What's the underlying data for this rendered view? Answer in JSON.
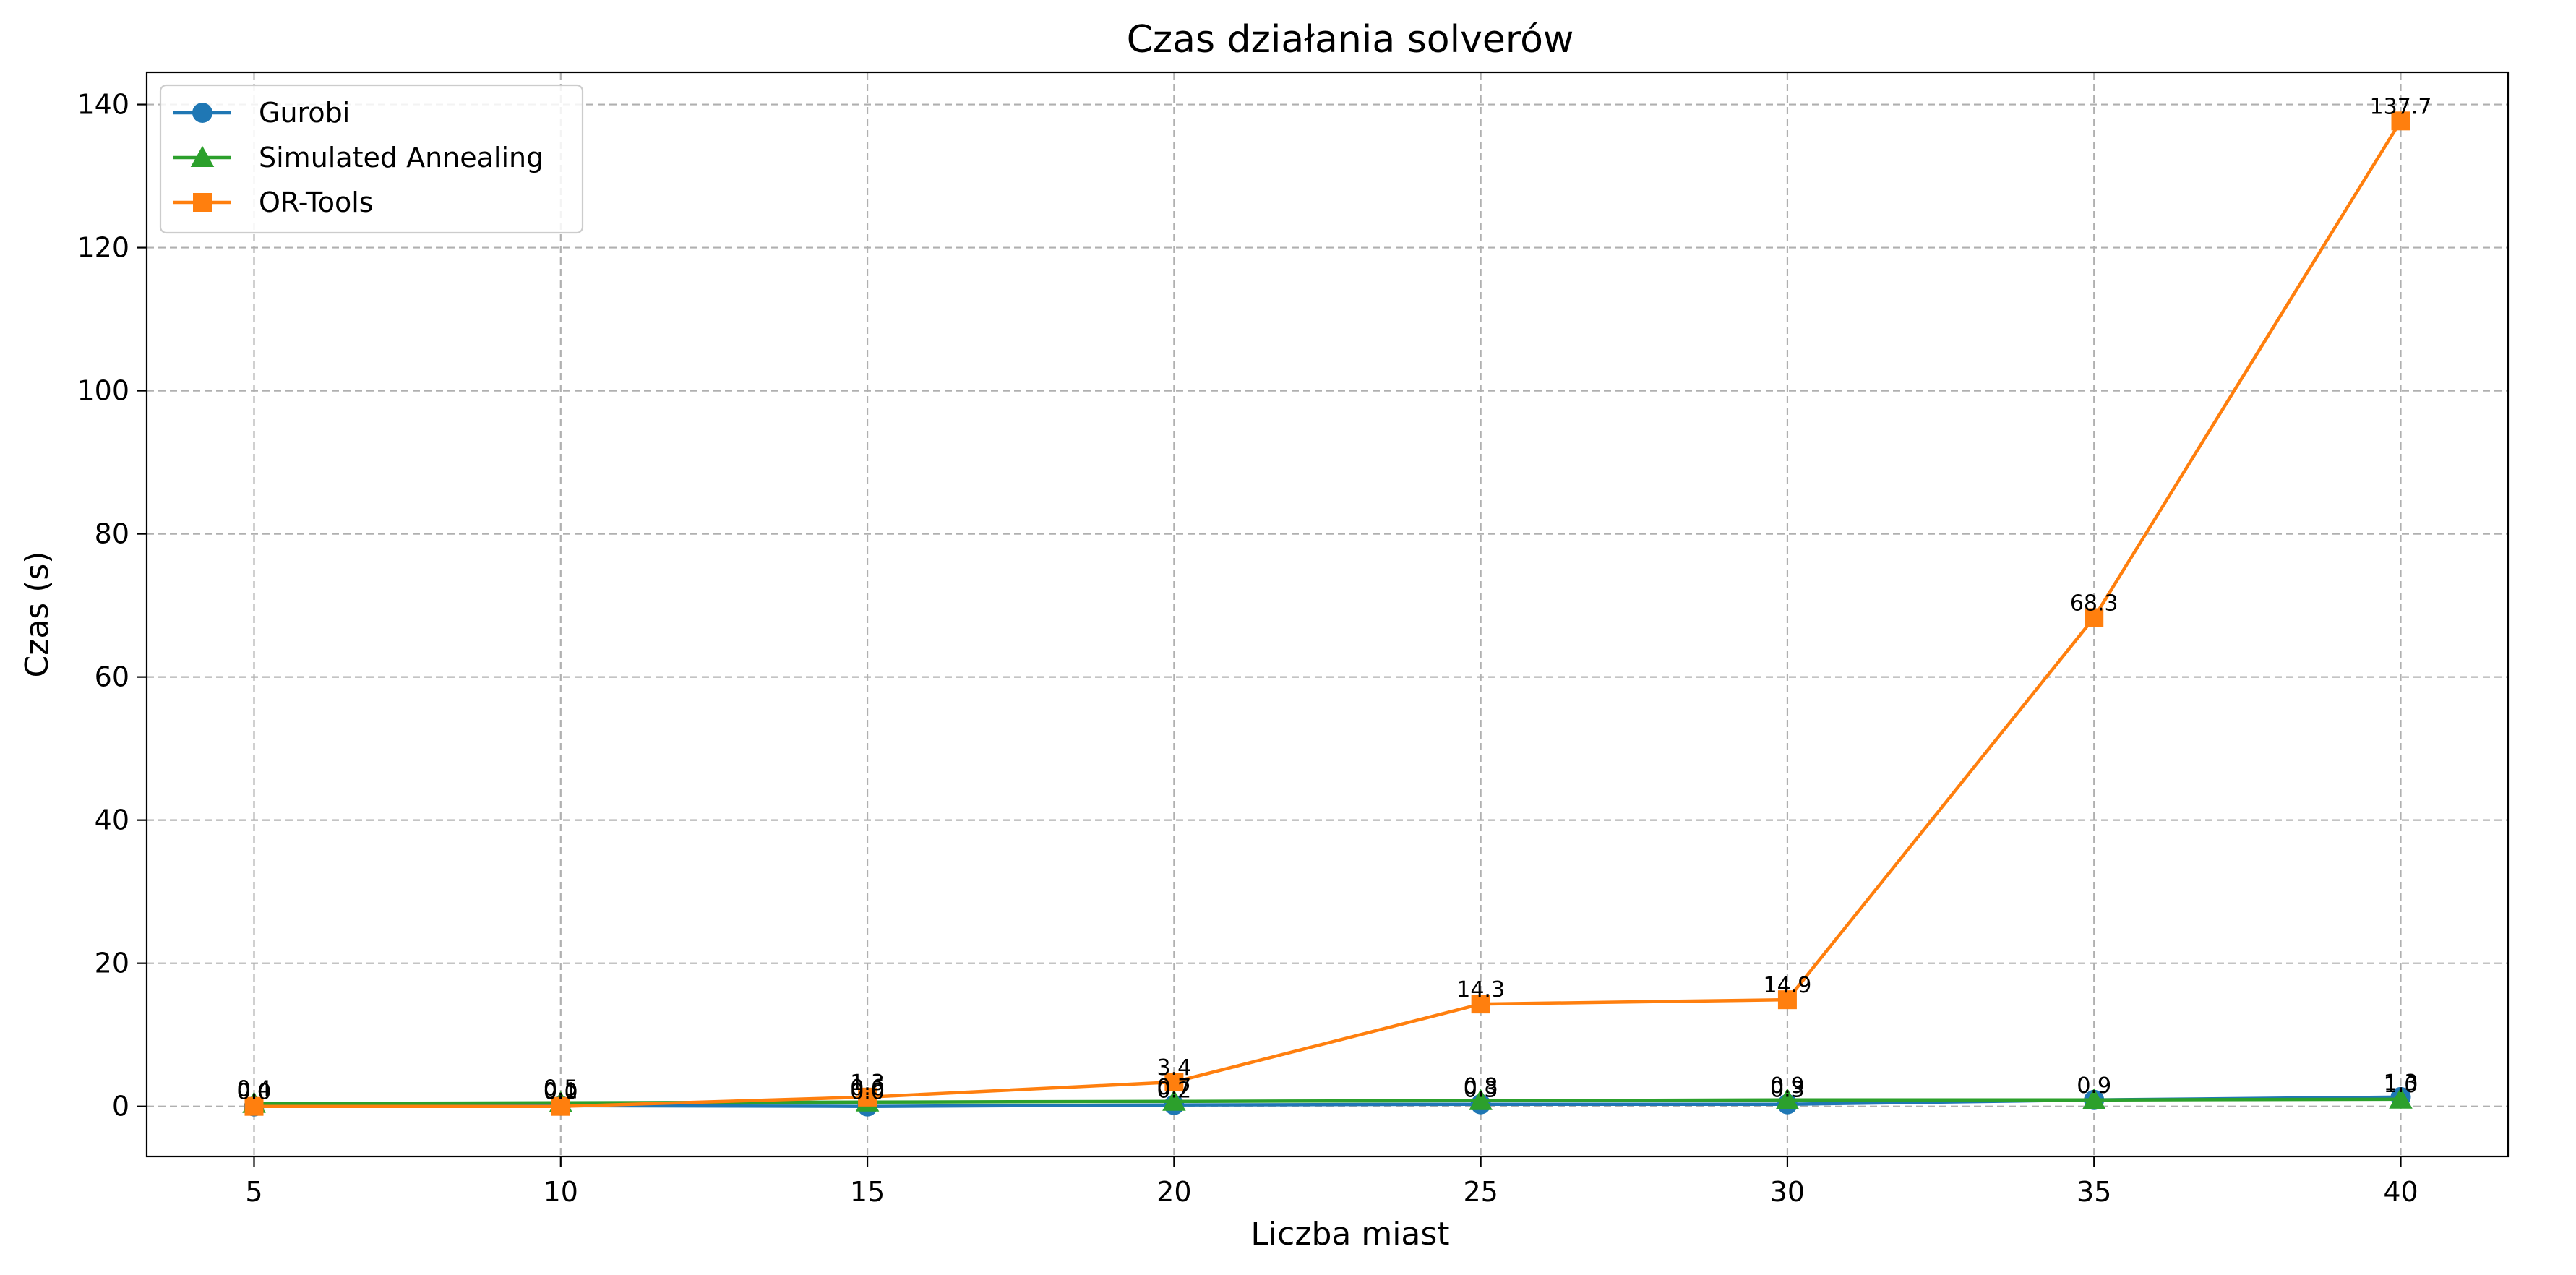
{
  "chart_data": {
    "type": "line",
    "title": "Czas działania solverów",
    "xlabel": "Liczba miast",
    "ylabel": "Czas (s)",
    "x": [
      5,
      10,
      15,
      20,
      25,
      30,
      35,
      40
    ],
    "xlim": [
      3.25,
      41.75
    ],
    "ylim": [
      -7.0,
      144.5
    ],
    "xticks": [
      5,
      10,
      15,
      20,
      25,
      30,
      35,
      40
    ],
    "yticks": [
      0,
      20,
      40,
      60,
      80,
      100,
      120,
      140
    ],
    "grid": true,
    "legend_position": "top-left",
    "series": [
      {
        "name": "Gurobi",
        "color": "#1f77b4",
        "marker": "circle",
        "values": [
          0.0,
          0.1,
          0.0,
          0.2,
          0.3,
          0.3,
          0.9,
          1.3
        ],
        "labels": [
          "0.0",
          "0.1",
          "0.0",
          "0.2",
          "0.3",
          "0.3",
          "0.9",
          "1.3"
        ]
      },
      {
        "name": "Simulated Annealing",
        "color": "#2ca02c",
        "marker": "triangle",
        "values": [
          0.4,
          0.5,
          0.6,
          0.7,
          0.8,
          0.9,
          0.9,
          1.0
        ],
        "labels": [
          "0.4",
          "0.5",
          "0.6",
          "0.7",
          "0.8",
          "0.9",
          "0.9",
          "1.0"
        ]
      },
      {
        "name": "OR-Tools",
        "color": "#ff7f0e",
        "marker": "square",
        "values": [
          0.0,
          0.0,
          1.3,
          3.4,
          14.3,
          14.9,
          68.3,
          137.7
        ],
        "labels": [
          "0.0",
          "0.0",
          "1.3",
          "3.4",
          "14.3",
          "14.9",
          "68.3",
          "137.7"
        ]
      }
    ]
  }
}
